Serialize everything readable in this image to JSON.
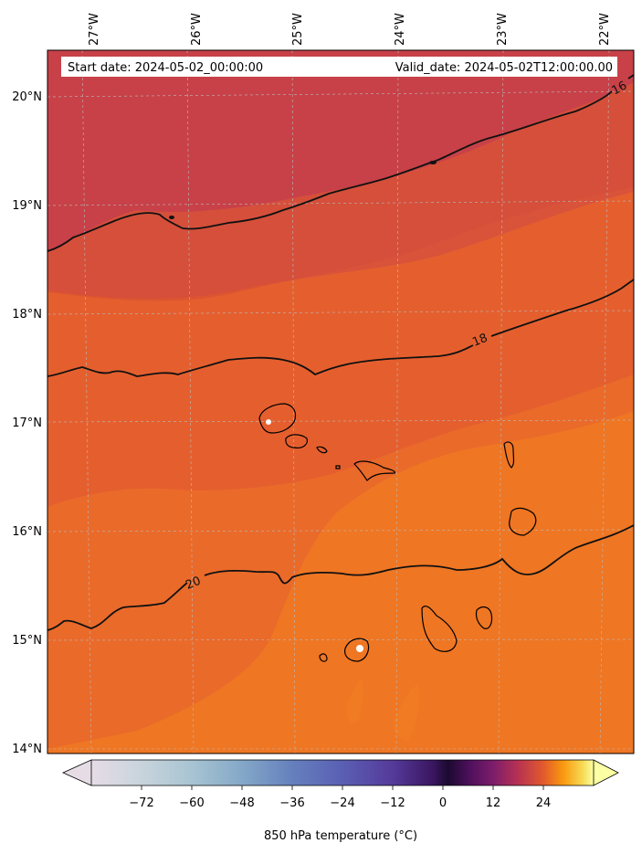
{
  "header": {
    "start_date": "Start date: 2024-05-02_00:00:00",
    "valid_date": "Valid_date: 2024-05-02T12:00:00.00"
  },
  "map": {
    "lon_labels": [
      "27°W",
      "26°W",
      "25°W",
      "24°W",
      "23°W",
      "22°W"
    ],
    "lat_labels": [
      "20°N",
      "19°N",
      "18°N",
      "17°N",
      "16°N",
      "15°N",
      "14°N"
    ],
    "contour_labels": [
      "16",
      "18",
      "20"
    ],
    "fill_colors": {
      "band_lt16": "#c84148",
      "band_16_18": "#d14b42",
      "band_18_19": "#dd5530",
      "band_19_20": "#e55f2e",
      "band_20_21": "#ea6a2a",
      "band_gt21": "#ef7623",
      "contour_line": "#111111",
      "coastline": "#000000",
      "grid": "#bbbbbb"
    }
  },
  "colorbar": {
    "title": "850 hPa temperature (°C)",
    "ticks": [
      "−72",
      "−60",
      "−48",
      "−36",
      "−24",
      "−12",
      "0",
      "12",
      "24"
    ],
    "tick_values": [
      -72,
      -60,
      -48,
      -36,
      -24,
      -12,
      0,
      12,
      24
    ],
    "range": [
      -84,
      36
    ]
  },
  "chart_data": {
    "type": "heatmap",
    "title": "",
    "field": "850 hPa temperature",
    "units": "°C",
    "xlabel": "",
    "ylabel": "",
    "lon_ticks": [
      -27,
      -26,
      -25,
      -24,
      -23,
      -22
    ],
    "lat_ticks": [
      20,
      19,
      18,
      17,
      16,
      15,
      14
    ],
    "contour_levels": [
      16,
      18,
      20
    ],
    "colorbar_range": [
      -84,
      36
    ],
    "colorbar_ticks": [
      -72,
      -60,
      -48,
      -36,
      -24,
      -12,
      0,
      12,
      24
    ],
    "colormap": "inferno-like with light-blue/purple negative end",
    "grid": true
  }
}
